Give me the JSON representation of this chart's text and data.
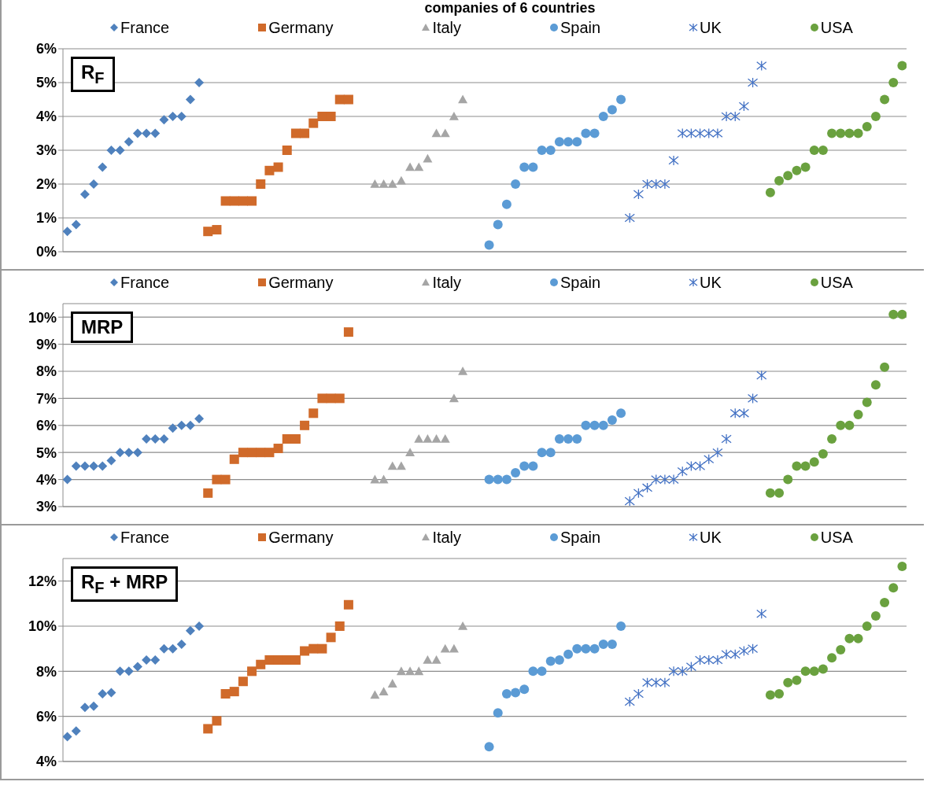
{
  "chart_data": [
    {
      "type": "scatter",
      "title": "R$_{F}$",
      "annotations": [
        "companies of 6 countries"
      ],
      "legend": "top",
      "grid": "y",
      "categories": [
        null,
        null,
        null,
        null,
        null,
        null,
        null,
        null,
        null,
        null,
        null,
        null,
        null,
        null,
        null,
        null,
        null,
        null,
        null,
        null,
        null,
        null,
        null,
        null,
        null,
        null,
        null,
        null,
        null,
        null,
        null,
        null,
        null,
        null,
        null,
        null,
        null,
        null,
        null,
        null,
        null,
        null,
        null,
        null,
        null,
        null,
        null,
        null,
        null,
        null,
        null,
        null,
        null,
        null,
        null,
        null,
        null,
        null,
        null,
        null,
        null,
        null,
        null,
        null,
        null,
        null,
        null,
        null,
        null,
        null,
        null,
        null,
        null,
        null,
        null,
        null,
        null,
        null,
        null,
        null,
        null,
        null,
        null,
        null,
        null,
        null,
        null,
        null,
        null,
        null,
        null,
        null,
        null,
        null,
        null,
        null
      ],
      "ylim": [
        0,
        6
      ],
      "yticks": [
        {
          "value": 0,
          "label": "0%"
        },
        {
          "value": 1,
          "label": "1%"
        },
        {
          "value": 2,
          "label": "2%"
        },
        {
          "value": 3,
          "label": "3%"
        },
        {
          "value": 4,
          "label": "4%"
        },
        {
          "value": 5,
          "label": "5%"
        },
        {
          "value": 6,
          "label": "6%"
        }
      ],
      "series": [
        {
          "name": "France",
          "color": "#4f81bd",
          "marker": "diamond",
          "values": [
            0.6,
            0.8,
            1.7,
            2.0,
            2.5,
            3.0,
            3.0,
            3.25,
            3.5,
            3.5,
            3.5,
            3.9,
            4.0,
            4.0,
            4.5,
            5.0,
            null,
            null,
            null,
            null,
            null,
            null,
            null,
            null,
            null,
            null,
            null,
            null,
            null,
            null,
            null,
            null,
            null,
            null,
            null,
            null,
            null,
            null,
            null,
            null,
            null,
            null,
            null,
            null,
            null,
            null,
            null,
            null,
            null,
            null,
            null,
            null,
            null,
            null,
            null,
            null,
            null,
            null,
            null,
            null,
            null,
            null,
            null,
            null,
            null,
            null,
            null,
            null,
            null,
            null,
            null,
            null,
            null,
            null,
            null,
            null,
            null,
            null,
            null,
            null,
            null,
            null,
            null,
            null,
            null,
            null,
            null,
            null,
            null,
            null,
            null,
            null,
            null,
            null,
            null,
            null
          ]
        },
        {
          "name": "Germany",
          "color": "#d06a2a",
          "marker": "square",
          "values": [
            null,
            null,
            null,
            null,
            null,
            null,
            null,
            null,
            null,
            null,
            null,
            null,
            null,
            null,
            null,
            null,
            0.6,
            0.65,
            1.5,
            1.5,
            1.5,
            1.5,
            2.0,
            2.4,
            2.5,
            3.0,
            3.5,
            3.5,
            3.8,
            4.0,
            4.0,
            4.5,
            4.5,
            null,
            null,
            null,
            null,
            null,
            null,
            null,
            null,
            null,
            null,
            null,
            null,
            null,
            null,
            null,
            null,
            null,
            null,
            null,
            null,
            null,
            null,
            null,
            null,
            null,
            null,
            null,
            null,
            null,
            null,
            null,
            null,
            null,
            null,
            null,
            null,
            null,
            null,
            null,
            null,
            null,
            null,
            null,
            null,
            null,
            null,
            null,
            null,
            null,
            null,
            null,
            null,
            null,
            null,
            null,
            null,
            null,
            null,
            null,
            null,
            null,
            null,
            null
          ]
        },
        {
          "name": "Italy",
          "color": "#a5a5a5",
          "marker": "triangle",
          "values": [
            null,
            null,
            null,
            null,
            null,
            null,
            null,
            null,
            null,
            null,
            null,
            null,
            null,
            null,
            null,
            null,
            null,
            null,
            null,
            null,
            null,
            null,
            null,
            null,
            null,
            null,
            null,
            null,
            null,
            null,
            null,
            null,
            null,
            null,
            null,
            2.0,
            2.0,
            2.0,
            2.1,
            2.5,
            2.5,
            2.75,
            3.5,
            3.5,
            4.0,
            4.5,
            null,
            null,
            null,
            null,
            null,
            null,
            null,
            null,
            null,
            null,
            null,
            null,
            null,
            null,
            null,
            null,
            null,
            null,
            null,
            null,
            null,
            null,
            null,
            null,
            null,
            null,
            null,
            null,
            null,
            null,
            null,
            null,
            null,
            null,
            null,
            null,
            null,
            null,
            null,
            null,
            null,
            null,
            null,
            null,
            null,
            null,
            null,
            null,
            null,
            null
          ]
        },
        {
          "name": "Spain",
          "color": "#5b9bd5",
          "marker": "circle",
          "values": [
            null,
            null,
            null,
            null,
            null,
            null,
            null,
            null,
            null,
            null,
            null,
            null,
            null,
            null,
            null,
            null,
            null,
            null,
            null,
            null,
            null,
            null,
            null,
            null,
            null,
            null,
            null,
            null,
            null,
            null,
            null,
            null,
            null,
            null,
            null,
            null,
            null,
            null,
            null,
            null,
            null,
            null,
            null,
            null,
            null,
            null,
            null,
            null,
            0.2,
            0.8,
            1.4,
            2.0,
            2.5,
            2.5,
            3.0,
            3.0,
            3.25,
            3.25,
            3.25,
            3.5,
            3.5,
            4.0,
            4.2,
            4.5,
            null,
            null,
            null,
            null,
            null,
            null,
            null,
            null,
            null,
            null,
            null,
            null,
            null,
            null,
            null,
            null,
            null,
            null,
            null,
            null,
            null,
            null,
            null,
            null,
            null,
            null,
            null,
            null,
            null,
            null,
            null,
            null
          ]
        },
        {
          "name": "UK",
          "color": "#4472c4",
          "marker": "cross",
          "values": [
            null,
            null,
            null,
            null,
            null,
            null,
            null,
            null,
            null,
            null,
            null,
            null,
            null,
            null,
            null,
            null,
            null,
            null,
            null,
            null,
            null,
            null,
            null,
            null,
            null,
            null,
            null,
            null,
            null,
            null,
            null,
            null,
            null,
            null,
            null,
            null,
            null,
            null,
            null,
            null,
            null,
            null,
            null,
            null,
            null,
            null,
            null,
            null,
            null,
            null,
            null,
            null,
            null,
            null,
            null,
            null,
            null,
            null,
            null,
            null,
            null,
            null,
            null,
            null,
            1.0,
            1.7,
            2.0,
            2.0,
            2.0,
            2.7,
            3.5,
            3.5,
            3.5,
            3.5,
            3.5,
            4.0,
            4.0,
            4.3,
            5.0,
            5.5,
            null,
            null,
            null,
            null,
            null,
            null,
            null,
            null,
            null,
            null,
            null,
            null,
            null,
            null,
            null,
            null
          ]
        },
        {
          "name": "USA",
          "color": "#6aa13f",
          "marker": "circle",
          "values": [
            null,
            null,
            null,
            null,
            null,
            null,
            null,
            null,
            null,
            null,
            null,
            null,
            null,
            null,
            null,
            null,
            null,
            null,
            null,
            null,
            null,
            null,
            null,
            null,
            null,
            null,
            null,
            null,
            null,
            null,
            null,
            null,
            null,
            null,
            null,
            null,
            null,
            null,
            null,
            null,
            null,
            null,
            null,
            null,
            null,
            null,
            null,
            null,
            null,
            null,
            null,
            null,
            null,
            null,
            null,
            null,
            null,
            null,
            null,
            null,
            null,
            null,
            null,
            null,
            null,
            null,
            null,
            null,
            null,
            null,
            null,
            null,
            null,
            null,
            null,
            null,
            null,
            null,
            null,
            null,
            1.75,
            2.1,
            2.25,
            2.4,
            2.5,
            3.0,
            3.0,
            3.5,
            3.5,
            3.5,
            3.5,
            3.7,
            4.0,
            4.5,
            5.0,
            5.5
          ]
        }
      ]
    },
    {
      "type": "scatter",
      "title": "MRP",
      "legend": "top",
      "grid": "y",
      "categories": [
        null,
        null,
        null,
        null,
        null,
        null,
        null,
        null,
        null,
        null,
        null,
        null,
        null,
        null,
        null,
        null,
        null,
        null,
        null,
        null,
        null,
        null,
        null,
        null,
        null,
        null,
        null,
        null,
        null,
        null,
        null,
        null,
        null,
        null,
        null,
        null,
        null,
        null,
        null,
        null,
        null,
        null,
        null,
        null,
        null,
        null,
        null,
        null,
        null,
        null,
        null,
        null,
        null,
        null,
        null,
        null,
        null,
        null,
        null,
        null,
        null,
        null,
        null,
        null,
        null,
        null,
        null,
        null,
        null,
        null,
        null,
        null,
        null,
        null,
        null,
        null,
        null,
        null,
        null,
        null,
        null,
        null,
        null,
        null,
        null,
        null,
        null,
        null,
        null,
        null,
        null,
        null,
        null,
        null,
        null,
        null
      ],
      "ylim": [
        3,
        10.5
      ],
      "yticks": [
        {
          "value": 3,
          "label": "3%"
        },
        {
          "value": 4,
          "label": "4%"
        },
        {
          "value": 5,
          "label": "5%"
        },
        {
          "value": 6,
          "label": "6%"
        },
        {
          "value": 7,
          "label": "7%"
        },
        {
          "value": 8,
          "label": "8%"
        },
        {
          "value": 9,
          "label": "9%"
        },
        {
          "value": 10,
          "label": "10%"
        }
      ],
      "series": [
        {
          "name": "France",
          "color": "#4f81bd",
          "marker": "diamond",
          "values": [
            4.0,
            4.5,
            4.5,
            4.5,
            4.5,
            4.7,
            5.0,
            5.0,
            5.0,
            5.5,
            5.5,
            5.5,
            5.9,
            6.0,
            6.0,
            6.25,
            null,
            null,
            null,
            null,
            null,
            null,
            null,
            null,
            null,
            null,
            null,
            null,
            null,
            null,
            null,
            null,
            null,
            null,
            null,
            null,
            null,
            null,
            null,
            null,
            null,
            null,
            null,
            null,
            null,
            null,
            null,
            null,
            null,
            null,
            null,
            null,
            null,
            null,
            null,
            null,
            null,
            null,
            null,
            null,
            null,
            null,
            null,
            null,
            null,
            null,
            null,
            null,
            null,
            null,
            null,
            null,
            null,
            null,
            null,
            null,
            null,
            null,
            null,
            null,
            null,
            null,
            null,
            null,
            null,
            null,
            null,
            null,
            null,
            null,
            null,
            null,
            null,
            null,
            null,
            null
          ]
        },
        {
          "name": "Germany",
          "color": "#d06a2a",
          "marker": "square",
          "values": [
            null,
            null,
            null,
            null,
            null,
            null,
            null,
            null,
            null,
            null,
            null,
            null,
            null,
            null,
            null,
            null,
            3.5,
            4.0,
            4.0,
            4.75,
            5.0,
            5.0,
            5.0,
            5.0,
            5.15,
            5.5,
            5.5,
            6.0,
            6.45,
            7.0,
            7.0,
            7.0,
            9.45,
            null,
            null,
            null,
            null,
            null,
            null,
            null,
            null,
            null,
            null,
            null,
            null,
            null,
            null,
            null,
            null,
            null,
            null,
            null,
            null,
            null,
            null,
            null,
            null,
            null,
            null,
            null,
            null,
            null,
            null,
            null,
            null,
            null,
            null,
            null,
            null,
            null,
            null,
            null,
            null,
            null,
            null,
            null,
            null,
            null,
            null,
            null,
            null,
            null,
            null,
            null,
            null,
            null,
            null,
            null,
            null,
            null,
            null,
            null,
            null,
            null,
            null,
            null
          ]
        },
        {
          "name": "Italy",
          "color": "#a5a5a5",
          "marker": "triangle",
          "values": [
            null,
            null,
            null,
            null,
            null,
            null,
            null,
            null,
            null,
            null,
            null,
            null,
            null,
            null,
            null,
            null,
            null,
            null,
            null,
            null,
            null,
            null,
            null,
            null,
            null,
            null,
            null,
            null,
            null,
            null,
            null,
            null,
            null,
            null,
            null,
            4.0,
            4.0,
            4.5,
            4.5,
            5.0,
            5.5,
            5.5,
            5.5,
            5.5,
            7.0,
            8.0,
            null,
            null,
            null,
            null,
            null,
            null,
            null,
            null,
            null,
            null,
            null,
            null,
            null,
            null,
            null,
            null,
            null,
            null,
            null,
            null,
            null,
            null,
            null,
            null,
            null,
            null,
            null,
            null,
            null,
            null,
            null,
            null,
            null,
            null,
            null,
            null,
            null,
            null,
            null,
            null,
            null,
            null,
            null,
            null,
            null,
            null,
            null,
            null,
            null,
            null
          ]
        },
        {
          "name": "Spain",
          "color": "#5b9bd5",
          "marker": "circle",
          "values": [
            null,
            null,
            null,
            null,
            null,
            null,
            null,
            null,
            null,
            null,
            null,
            null,
            null,
            null,
            null,
            null,
            null,
            null,
            null,
            null,
            null,
            null,
            null,
            null,
            null,
            null,
            null,
            null,
            null,
            null,
            null,
            null,
            null,
            null,
            null,
            null,
            null,
            null,
            null,
            null,
            null,
            null,
            null,
            null,
            null,
            null,
            null,
            null,
            4.0,
            4.0,
            4.0,
            4.25,
            4.5,
            4.5,
            5.0,
            5.0,
            5.5,
            5.5,
            5.5,
            6.0,
            6.0,
            6.0,
            6.2,
            6.45,
            null,
            null,
            null,
            null,
            null,
            null,
            null,
            null,
            null,
            null,
            null,
            null,
            null,
            null,
            null,
            null,
            null,
            null,
            null,
            null,
            null,
            null,
            null,
            null,
            null,
            null,
            null,
            null,
            null,
            null,
            null,
            null
          ]
        },
        {
          "name": "UK",
          "color": "#4472c4",
          "marker": "cross",
          "values": [
            null,
            null,
            null,
            null,
            null,
            null,
            null,
            null,
            null,
            null,
            null,
            null,
            null,
            null,
            null,
            null,
            null,
            null,
            null,
            null,
            null,
            null,
            null,
            null,
            null,
            null,
            null,
            null,
            null,
            null,
            null,
            null,
            null,
            null,
            null,
            null,
            null,
            null,
            null,
            null,
            null,
            null,
            null,
            null,
            null,
            null,
            null,
            null,
            null,
            null,
            null,
            null,
            null,
            null,
            null,
            null,
            null,
            null,
            null,
            null,
            null,
            null,
            null,
            null,
            3.2,
            3.5,
            3.7,
            4.0,
            4.0,
            4.0,
            4.3,
            4.5,
            4.5,
            4.75,
            5.0,
            5.5,
            6.45,
            6.45,
            7.0,
            7.85,
            null,
            null,
            null,
            null,
            null,
            null,
            null,
            null,
            null,
            null,
            null,
            null,
            null,
            null,
            null,
            null
          ]
        },
        {
          "name": "USA",
          "color": "#6aa13f",
          "marker": "circle",
          "values": [
            null,
            null,
            null,
            null,
            null,
            null,
            null,
            null,
            null,
            null,
            null,
            null,
            null,
            null,
            null,
            null,
            null,
            null,
            null,
            null,
            null,
            null,
            null,
            null,
            null,
            null,
            null,
            null,
            null,
            null,
            null,
            null,
            null,
            null,
            null,
            null,
            null,
            null,
            null,
            null,
            null,
            null,
            null,
            null,
            null,
            null,
            null,
            null,
            null,
            null,
            null,
            null,
            null,
            null,
            null,
            null,
            null,
            null,
            null,
            null,
            null,
            null,
            null,
            null,
            null,
            null,
            null,
            null,
            null,
            null,
            null,
            null,
            null,
            null,
            null,
            null,
            null,
            null,
            null,
            null,
            3.5,
            3.5,
            4.0,
            4.5,
            4.5,
            4.65,
            4.95,
            5.5,
            6.0,
            6.0,
            6.4,
            6.85,
            7.5,
            8.15,
            10.1,
            10.1
          ]
        }
      ]
    },
    {
      "type": "scatter",
      "title": "R$_{F}$ + MRP",
      "legend": "top",
      "grid": "y",
      "categories": [
        null,
        null,
        null,
        null,
        null,
        null,
        null,
        null,
        null,
        null,
        null,
        null,
        null,
        null,
        null,
        null,
        null,
        null,
        null,
        null,
        null,
        null,
        null,
        null,
        null,
        null,
        null,
        null,
        null,
        null,
        null,
        null,
        null,
        null,
        null,
        null,
        null,
        null,
        null,
        null,
        null,
        null,
        null,
        null,
        null,
        null,
        null,
        null,
        null,
        null,
        null,
        null,
        null,
        null,
        null,
        null,
        null,
        null,
        null,
        null,
        null,
        null,
        null,
        null,
        null,
        null,
        null,
        null,
        null,
        null,
        null,
        null,
        null,
        null,
        null,
        null,
        null,
        null,
        null,
        null,
        null,
        null,
        null,
        null,
        null,
        null,
        null,
        null,
        null,
        null,
        null,
        null,
        null,
        null,
        null,
        null
      ],
      "ylim": [
        4,
        13
      ],
      "yticks": [
        {
          "value": 4,
          "label": "4%"
        },
        {
          "value": 6,
          "label": "6%"
        },
        {
          "value": 8,
          "label": "8%"
        },
        {
          "value": 10,
          "label": "10%"
        },
        {
          "value": 12,
          "label": "12%"
        }
      ],
      "series": [
        {
          "name": "France",
          "color": "#4f81bd",
          "marker": "diamond",
          "values": [
            5.1,
            5.35,
            6.4,
            6.45,
            7.0,
            7.05,
            8.0,
            8.0,
            8.2,
            8.5,
            8.5,
            9.0,
            9.0,
            9.2,
            9.8,
            10.0,
            null,
            null,
            null,
            null,
            null,
            null,
            null,
            null,
            null,
            null,
            null,
            null,
            null,
            null,
            null,
            null,
            null,
            null,
            null,
            null,
            null,
            null,
            null,
            null,
            null,
            null,
            null,
            null,
            null,
            null,
            null,
            null,
            null,
            null,
            null,
            null,
            null,
            null,
            null,
            null,
            null,
            null,
            null,
            null,
            null,
            null,
            null,
            null,
            null,
            null,
            null,
            null,
            null,
            null,
            null,
            null,
            null,
            null,
            null,
            null,
            null,
            null,
            null,
            null,
            null,
            null,
            null,
            null,
            null,
            null,
            null,
            null,
            null,
            null,
            null,
            null,
            null,
            null,
            null,
            null
          ]
        },
        {
          "name": "Germany",
          "color": "#d06a2a",
          "marker": "square",
          "values": [
            null,
            null,
            null,
            null,
            null,
            null,
            null,
            null,
            null,
            null,
            null,
            null,
            null,
            null,
            null,
            null,
            5.45,
            5.8,
            7.0,
            7.1,
            7.55,
            8.0,
            8.3,
            8.5,
            8.5,
            8.5,
            8.5,
            8.9,
            9.0,
            9.0,
            9.5,
            10.0,
            10.95,
            null,
            null,
            null,
            null,
            null,
            null,
            null,
            null,
            null,
            null,
            null,
            null,
            null,
            null,
            null,
            null,
            null,
            null,
            null,
            null,
            null,
            null,
            null,
            null,
            null,
            null,
            null,
            null,
            null,
            null,
            null,
            null,
            null,
            null,
            null,
            null,
            null,
            null,
            null,
            null,
            null,
            null,
            null,
            null,
            null,
            null,
            null,
            null,
            null,
            null,
            null,
            null,
            null,
            null,
            null,
            null,
            null,
            null,
            null,
            null,
            null,
            null,
            null
          ]
        },
        {
          "name": "Italy",
          "color": "#a5a5a5",
          "marker": "triangle",
          "values": [
            null,
            null,
            null,
            null,
            null,
            null,
            null,
            null,
            null,
            null,
            null,
            null,
            null,
            null,
            null,
            null,
            null,
            null,
            null,
            null,
            null,
            null,
            null,
            null,
            null,
            null,
            null,
            null,
            null,
            null,
            null,
            null,
            null,
            null,
            null,
            6.95,
            7.1,
            7.45,
            8.0,
            8.0,
            8.0,
            8.5,
            8.5,
            9.0,
            9.0,
            10.0,
            null,
            null,
            null,
            null,
            null,
            null,
            null,
            null,
            null,
            null,
            null,
            null,
            null,
            null,
            null,
            null,
            null,
            null,
            null,
            null,
            null,
            null,
            null,
            null,
            null,
            null,
            null,
            null,
            null,
            null,
            null,
            null,
            null,
            null,
            null,
            null,
            null,
            null,
            null,
            null,
            null,
            null,
            null,
            null,
            null,
            null,
            null,
            null,
            null,
            null
          ]
        },
        {
          "name": "Spain",
          "color": "#5b9bd5",
          "marker": "circle",
          "values": [
            null,
            null,
            null,
            null,
            null,
            null,
            null,
            null,
            null,
            null,
            null,
            null,
            null,
            null,
            null,
            null,
            null,
            null,
            null,
            null,
            null,
            null,
            null,
            null,
            null,
            null,
            null,
            null,
            null,
            null,
            null,
            null,
            null,
            null,
            null,
            null,
            null,
            null,
            null,
            null,
            null,
            null,
            null,
            null,
            null,
            null,
            null,
            null,
            4.65,
            6.15,
            7.0,
            7.05,
            7.2,
            8.0,
            8.0,
            8.45,
            8.5,
            8.75,
            9.0,
            9.0,
            9.0,
            9.2,
            9.2,
            10.0,
            null,
            null,
            null,
            null,
            null,
            null,
            null,
            null,
            null,
            null,
            null,
            null,
            null,
            null,
            null,
            null,
            null,
            null,
            null,
            null,
            null,
            null,
            null,
            null,
            null,
            null,
            null,
            null,
            null,
            null,
            null,
            null
          ]
        },
        {
          "name": "UK",
          "color": "#4472c4",
          "marker": "cross",
          "values": [
            null,
            null,
            null,
            null,
            null,
            null,
            null,
            null,
            null,
            null,
            null,
            null,
            null,
            null,
            null,
            null,
            null,
            null,
            null,
            null,
            null,
            null,
            null,
            null,
            null,
            null,
            null,
            null,
            null,
            null,
            null,
            null,
            null,
            null,
            null,
            null,
            null,
            null,
            null,
            null,
            null,
            null,
            null,
            null,
            null,
            null,
            null,
            null,
            null,
            null,
            null,
            null,
            null,
            null,
            null,
            null,
            null,
            null,
            null,
            null,
            null,
            null,
            null,
            null,
            6.65,
            7.0,
            7.5,
            7.5,
            7.5,
            8.0,
            8.0,
            8.2,
            8.5,
            8.5,
            8.5,
            8.75,
            8.75,
            8.9,
            9.0,
            10.55,
            null,
            null,
            null,
            null,
            null,
            null,
            null,
            null,
            null,
            null,
            null,
            null,
            null,
            null,
            null,
            null
          ]
        },
        {
          "name": "USA",
          "color": "#6aa13f",
          "marker": "circle",
          "values": [
            null,
            null,
            null,
            null,
            null,
            null,
            null,
            null,
            null,
            null,
            null,
            null,
            null,
            null,
            null,
            null,
            null,
            null,
            null,
            null,
            null,
            null,
            null,
            null,
            null,
            null,
            null,
            null,
            null,
            null,
            null,
            null,
            null,
            null,
            null,
            null,
            null,
            null,
            null,
            null,
            null,
            null,
            null,
            null,
            null,
            null,
            null,
            null,
            null,
            null,
            null,
            null,
            null,
            null,
            null,
            null,
            null,
            null,
            null,
            null,
            null,
            null,
            null,
            null,
            null,
            null,
            null,
            null,
            null,
            null,
            null,
            null,
            null,
            null,
            null,
            null,
            null,
            null,
            null,
            null,
            6.95,
            7.0,
            7.5,
            7.6,
            8.0,
            8.0,
            8.1,
            8.6,
            8.95,
            9.45,
            9.45,
            10.0,
            10.45,
            11.05,
            11.7,
            12.65
          ]
        }
      ]
    }
  ]
}
